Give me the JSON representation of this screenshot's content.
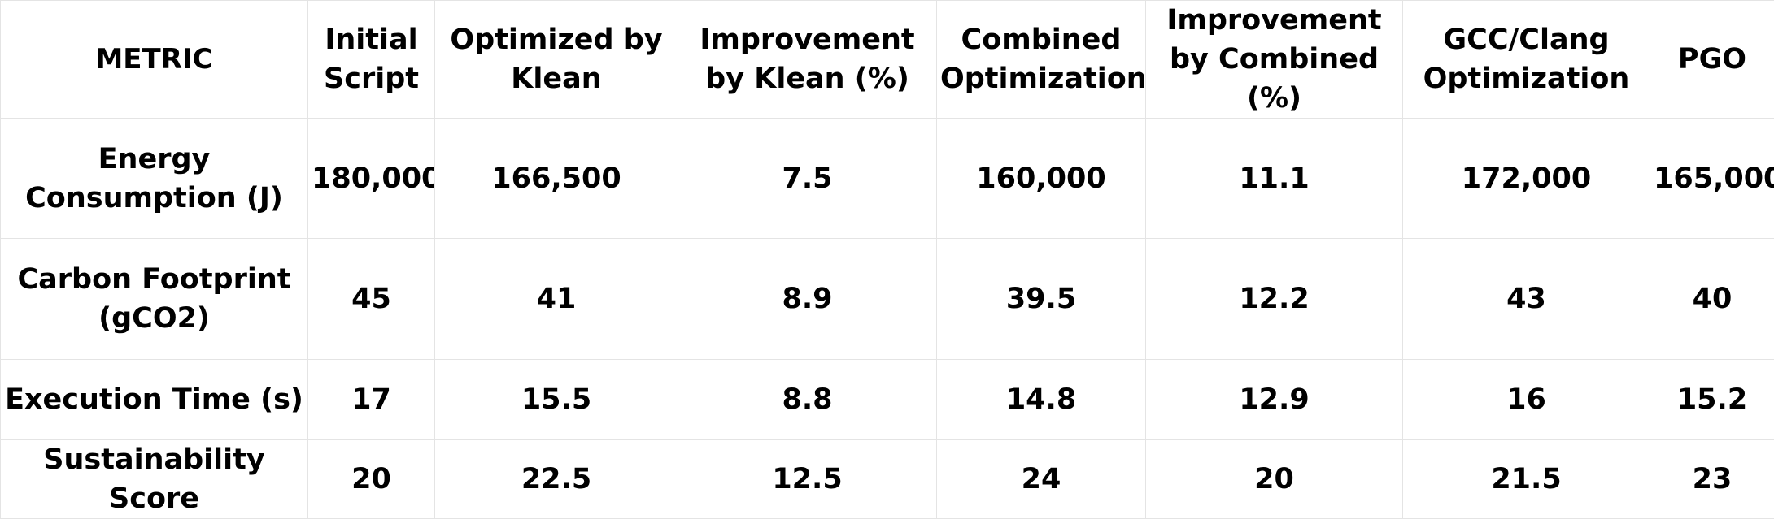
{
  "table": {
    "headers": [
      "METRIC",
      "Initial Script",
      "Optimized by Klean",
      "Improvement by Klean (%)",
      "Combined Optimization",
      "Improvement by Combined (%)",
      "GCC/Clang Optimization",
      "PGO"
    ],
    "rows": [
      {
        "metric": "Energy Consumption (J)",
        "values": [
          "180,000",
          "166,500",
          "7.5",
          "160,000",
          "11.1",
          "172,000",
          "165,000"
        ]
      },
      {
        "metric": "Carbon Footprint (gCO2)",
        "values": [
          "45",
          "41",
          "8.9",
          "39.5",
          "12.2",
          "43",
          "40"
        ]
      },
      {
        "metric": "Execution Time (s)",
        "values": [
          "17",
          "15.5",
          "8.8",
          "14.8",
          "12.9",
          "16",
          "15.2"
        ]
      },
      {
        "metric": "Sustainability Score",
        "values": [
          "20",
          "22.5",
          "12.5",
          "24",
          "20",
          "21.5",
          "23"
        ]
      }
    ]
  }
}
